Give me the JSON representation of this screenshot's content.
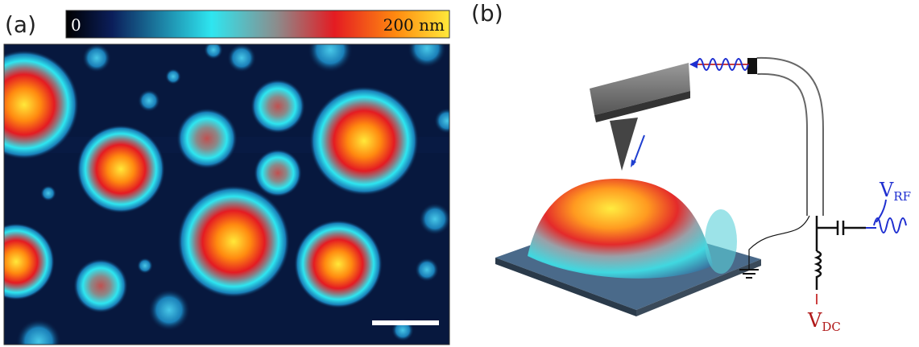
{
  "panel_a": {
    "label": "(a)",
    "colorbar": {
      "min_label": "0",
      "max_label": "200 nm"
    }
  },
  "panel_b": {
    "label": "(b)",
    "v_rf": {
      "symbol": "V",
      "subscript": "RF"
    },
    "v_dc": {
      "symbol": "V",
      "subscript": "DC"
    }
  }
}
